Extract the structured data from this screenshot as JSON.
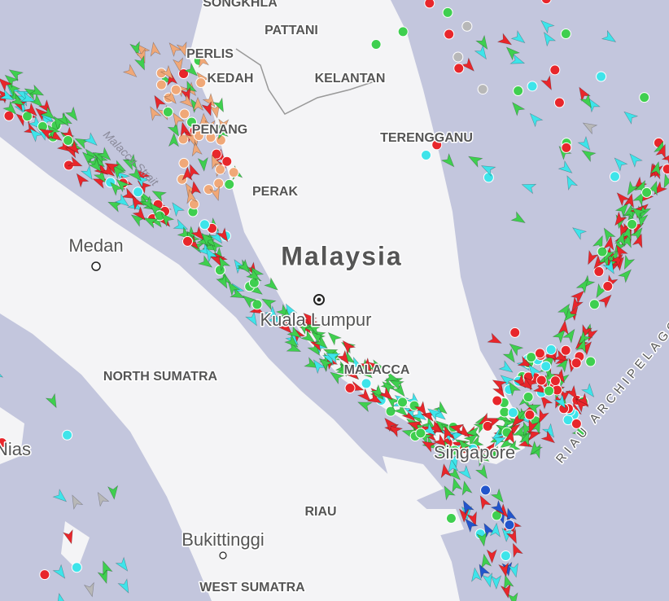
{
  "map": {
    "country_label": "Malaysia",
    "places": [
      {
        "label": "SONGKHLA"
      },
      {
        "label": "PATTANI"
      },
      {
        "label": "PERLIS"
      },
      {
        "label": "KEDAH"
      },
      {
        "label": "KELANTAN"
      },
      {
        "label": "PENANG"
      },
      {
        "label": "TERENGGANU"
      },
      {
        "label": "PERAK"
      },
      {
        "label": "MALACCA"
      },
      {
        "label": "NORTH SUMATRA"
      },
      {
        "label": "RIAU"
      },
      {
        "label": "WEST SUMATRA"
      }
    ],
    "cities": [
      {
        "label": "Kuala Lumpur"
      },
      {
        "label": "Medan"
      },
      {
        "label": "Singapore"
      },
      {
        "label": "Nias"
      },
      {
        "label": "Bukittinggi"
      }
    ],
    "water": [
      {
        "label": "Malacca Strait"
      },
      {
        "label": "RIAU ARCHIPELAGO"
      }
    ]
  }
}
